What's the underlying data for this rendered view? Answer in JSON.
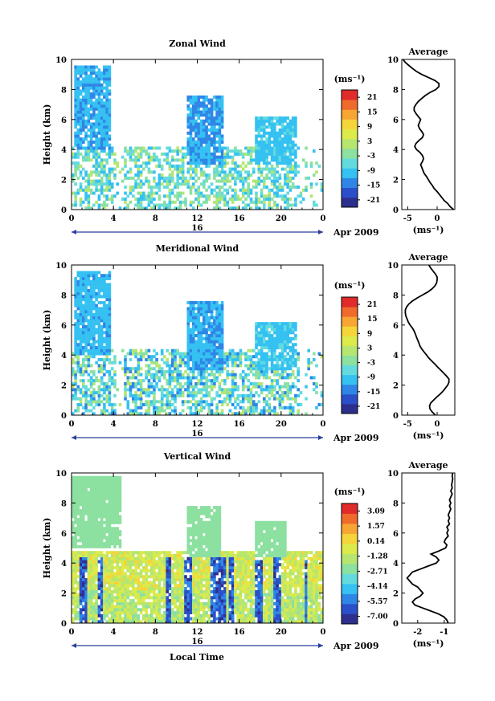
{
  "figure": {
    "xlabel": "Local Time",
    "date_label": "Apr 2009",
    "day_label": "16"
  },
  "chart_data": [
    {
      "type": "heatmap",
      "title": "Zonal Wind",
      "ylabel": "Height (km)",
      "xlabel": "",
      "xlim": [
        0,
        24
      ],
      "ylim": [
        0,
        10
      ],
      "x_ticks": [
        "0",
        "4",
        "8",
        "12",
        "16",
        "20",
        "0"
      ],
      "y_ticks": [
        "0",
        "2",
        "4",
        "6",
        "8",
        "10"
      ],
      "colorbar": {
        "unit": "(ms⁻¹)",
        "ticks": [
          "21",
          "15",
          "9",
          "3",
          "-3",
          "-9",
          "-15",
          "-21"
        ],
        "range": [
          -24,
          24
        ]
      },
      "average": {
        "title": "Average",
        "unit": "(ms⁻¹)",
        "x_ticks": [
          "-5",
          "0"
        ],
        "xlim": [
          -6,
          3
        ],
        "y_ticks": [
          "0",
          "2",
          "4",
          "6",
          "8",
          "10"
        ],
        "profile_x": [
          2.8,
          2.2,
          1.8,
          1.2,
          0.8,
          0.4,
          0.0,
          -0.5,
          -0.8,
          -1.2,
          -1.5,
          -1.8,
          -2.2,
          -2.4,
          -2.6,
          -2.8,
          -2.5,
          -2.3,
          -2.5,
          -2.9,
          -3.5,
          -3.8,
          -3.6,
          -3.1,
          -2.5,
          -2.3,
          -2.6,
          -3.0,
          -3.2,
          -3.0,
          -2.8,
          -3.2,
          -3.6,
          -3.9,
          -3.9,
          -3.6,
          -3.2,
          -2.6,
          -2.0,
          -1.2,
          -0.2,
          0.3,
          0.3,
          -0.4,
          -1.5,
          -2.6,
          -3.5,
          -4.2,
          -4.8,
          -5.4,
          -5.8
        ],
        "profile_height": [
          0.0,
          0.2,
          0.4,
          0.6,
          0.8,
          1.0,
          1.2,
          1.4,
          1.6,
          1.8,
          2.0,
          2.2,
          2.4,
          2.6,
          2.8,
          3.0,
          3.2,
          3.4,
          3.6,
          3.8,
          4.0,
          4.2,
          4.4,
          4.6,
          4.8,
          5.0,
          5.2,
          5.4,
          5.6,
          5.8,
          6.0,
          6.2,
          6.4,
          6.6,
          6.8,
          7.0,
          7.2,
          7.4,
          7.6,
          7.8,
          8.0,
          8.2,
          8.4,
          8.6,
          8.8,
          9.0,
          9.2,
          9.4,
          9.6,
          9.8,
          10.0
        ]
      }
    },
    {
      "type": "heatmap",
      "title": "Meridional Wind",
      "ylabel": "Height (km)",
      "xlabel": "",
      "xlim": [
        0,
        24
      ],
      "ylim": [
        0,
        10
      ],
      "x_ticks": [
        "0",
        "4",
        "8",
        "12",
        "16",
        "20",
        "0"
      ],
      "y_ticks": [
        "0",
        "2",
        "4",
        "6",
        "8",
        "10"
      ],
      "colorbar": {
        "unit": "(ms⁻¹)",
        "ticks": [
          "21",
          "15",
          "9",
          "3",
          "-3",
          "-9",
          "-15",
          "-21"
        ],
        "range": [
          -24,
          24
        ]
      },
      "average": {
        "title": "Average",
        "unit": "(ms⁻¹)",
        "x_ticks": [
          "-5",
          "0"
        ],
        "xlim": [
          -6,
          3
        ],
        "y_ticks": [
          "0",
          "2",
          "4",
          "6",
          "8",
          "10"
        ],
        "profile_x": [
          -0.3,
          -0.8,
          -1.2,
          -1.3,
          -1.1,
          -0.6,
          -0.1,
          0.5,
          1.0,
          1.4,
          1.8,
          2.0,
          2.0,
          1.6,
          1.1,
          0.6,
          0.1,
          -0.4,
          -0.9,
          -1.4,
          -1.8,
          -2.2,
          -2.6,
          -2.9,
          -3.1,
          -3.3,
          -3.5,
          -3.7,
          -3.9,
          -4.2,
          -4.6,
          -4.9,
          -5.1,
          -5.3,
          -5.4,
          -5.4,
          -5.2,
          -4.8,
          -4.2,
          -3.4,
          -2.5,
          -1.6,
          -0.9,
          -0.4,
          -0.1,
          0.0,
          0.0,
          -0.3,
          -0.7,
          -1.1,
          -1.4
        ],
        "profile_height": [
          0.0,
          0.2,
          0.4,
          0.6,
          0.8,
          1.0,
          1.2,
          1.4,
          1.6,
          1.8,
          2.0,
          2.2,
          2.4,
          2.6,
          2.8,
          3.0,
          3.2,
          3.4,
          3.6,
          3.8,
          4.0,
          4.2,
          4.4,
          4.6,
          4.8,
          5.0,
          5.2,
          5.4,
          5.6,
          5.8,
          6.0,
          6.2,
          6.4,
          6.6,
          6.8,
          7.0,
          7.2,
          7.4,
          7.6,
          7.8,
          8.0,
          8.2,
          8.4,
          8.6,
          8.8,
          9.0,
          9.2,
          9.4,
          9.6,
          9.8,
          10.0
        ]
      }
    },
    {
      "type": "heatmap",
      "title": "Vertical Wind",
      "ylabel": "Height (km)",
      "xlabel": "Local Time",
      "xlim": [
        0,
        24
      ],
      "ylim": [
        0,
        10
      ],
      "x_ticks": [
        "0",
        "4",
        "8",
        "12",
        "16",
        "20",
        "0"
      ],
      "y_ticks": [
        "0",
        "2",
        "4",
        "6",
        "8",
        "10"
      ],
      "colorbar": {
        "unit": "(ms⁻¹)",
        "ticks": [
          "3.09",
          "1.57",
          "0.14",
          "-1.28",
          "-2.71",
          "-4.14",
          "-5.57",
          "-7.00"
        ],
        "range": [
          -7.7,
          3.8
        ]
      },
      "average": {
        "title": "Average",
        "unit": "(ms⁻¹)",
        "x_ticks": [
          "-2",
          "-1"
        ],
        "xlim": [
          -2.6,
          -0.6
        ],
        "y_ticks": [
          "0",
          "2",
          "4",
          "6",
          "8",
          "10"
        ],
        "profile_x": [
          -0.85,
          -0.9,
          -1.0,
          -1.2,
          -1.5,
          -1.8,
          -2.1,
          -2.2,
          -2.1,
          -1.9,
          -1.8,
          -1.9,
          -2.0,
          -2.2,
          -2.3,
          -2.4,
          -2.3,
          -2.2,
          -1.9,
          -1.6,
          -1.3,
          -1.2,
          -1.3,
          -1.5,
          -1.2,
          -0.95,
          -0.9,
          -1.0,
          -0.95,
          -0.85,
          -0.9,
          -0.85,
          -0.9,
          -0.8,
          -0.85,
          -0.8,
          -0.85,
          -0.8,
          -0.75,
          -0.8,
          -0.75,
          -0.8,
          -0.75,
          -0.7,
          -0.75,
          -0.7,
          -0.72,
          -0.7,
          -0.68,
          -0.7,
          -0.68
        ],
        "profile_height": [
          0.0,
          0.2,
          0.4,
          0.6,
          0.8,
          1.0,
          1.2,
          1.4,
          1.6,
          1.8,
          2.0,
          2.2,
          2.4,
          2.6,
          2.8,
          3.0,
          3.2,
          3.4,
          3.6,
          3.8,
          4.0,
          4.2,
          4.4,
          4.6,
          4.8,
          5.0,
          5.2,
          5.4,
          5.6,
          5.8,
          6.0,
          6.2,
          6.4,
          6.6,
          6.8,
          7.0,
          7.2,
          7.4,
          7.6,
          7.8,
          8.0,
          8.2,
          8.4,
          8.6,
          8.8,
          9.0,
          9.2,
          9.4,
          9.6,
          9.8,
          10.0
        ]
      }
    }
  ],
  "colormap": [
    "#2d2f8e",
    "#2b4fc8",
    "#2f86e6",
    "#35c1f2",
    "#63dbde",
    "#8ce0a0",
    "#b6e670",
    "#dcea4a",
    "#f6d53a",
    "#f7a533",
    "#f06a2c",
    "#e02b2a"
  ]
}
